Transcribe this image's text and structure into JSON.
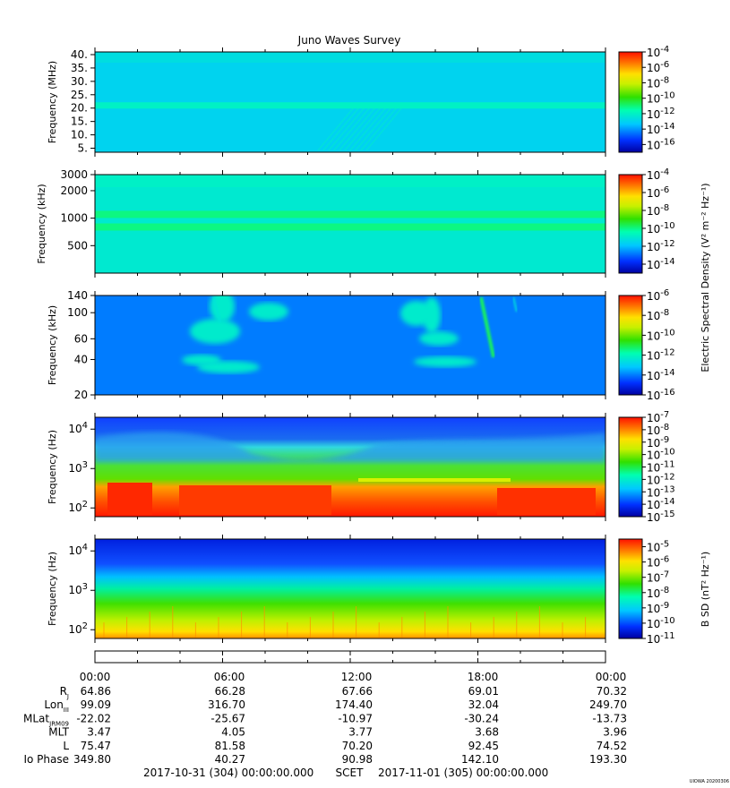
{
  "title": "Juno Waves Survey",
  "colorbar_label_electric": "Electric Spectral Density (V² m⁻² Hz⁻¹)",
  "colorbar_label_magnetic": "B SD (nT² Hz⁻¹)",
  "chart_data": [
    {
      "type": "heatmap",
      "ylabel": "Frequency (MHz)",
      "yscale": "linear",
      "ylim": [
        3.5,
        41
      ],
      "yticks": [
        "5.",
        "10.",
        "15.",
        "20.",
        "25.",
        "30.",
        "35.",
        "40."
      ],
      "ytick_values": [
        5,
        10,
        15,
        20,
        25,
        30,
        35,
        40
      ],
      "colorbar": {
        "scale": "log",
        "range_exp": [
          -17,
          -4
        ],
        "ticks": [
          -4,
          -6,
          -8,
          -10,
          -12,
          -14,
          -16
        ]
      },
      "background_level_exp": -13,
      "bands": [
        {
          "freq": 21,
          "level_exp": -12
        }
      ]
    },
    {
      "type": "heatmap",
      "ylabel": "Frequency (kHz)",
      "yscale": "log",
      "ylim": [
        250,
        3000
      ],
      "yticks": [
        "500",
        "1000",
        "2000",
        "3000"
      ],
      "ytick_values": [
        500,
        1000,
        2000,
        3000
      ],
      "colorbar": {
        "scale": "log",
        "range_exp": [
          -15,
          -4
        ],
        "ticks": [
          -4,
          -6,
          -8,
          -10,
          -12,
          -14
        ]
      },
      "background_level_exp": -11,
      "bands": [
        {
          "freq": 1100,
          "level_exp": -10
        },
        {
          "freq": 800,
          "level_exp": -10
        }
      ]
    },
    {
      "type": "heatmap",
      "ylabel": "Frequency (kHz)",
      "yscale": "log",
      "ylim": [
        20,
        140
      ],
      "yticks": [
        "20",
        "40",
        "60",
        "100",
        "140"
      ],
      "ytick_values": [
        20,
        40,
        60,
        100,
        140
      ],
      "colorbar": {
        "scale": "log",
        "range_exp": [
          -16,
          -6
        ],
        "ticks": [
          -6,
          -8,
          -10,
          -12,
          -14,
          -16
        ]
      },
      "background_level_exp": -14
    },
    {
      "type": "heatmap",
      "ylabel": "Frequency (Hz)",
      "yscale": "log",
      "ylim": [
        60,
        20000
      ],
      "yticks": [
        "10²",
        "10³",
        "10⁴"
      ],
      "ytick_values": [
        100,
        1000,
        10000
      ],
      "colorbar": {
        "scale": "log",
        "range_exp": [
          -15,
          -7
        ],
        "ticks": [
          -7,
          -8,
          -9,
          -10,
          -11,
          -12,
          -13,
          -14,
          -15
        ]
      }
    },
    {
      "type": "heatmap",
      "ylabel": "Frequency (Hz)",
      "yscale": "log",
      "ylim": [
        60,
        20000
      ],
      "yticks": [
        "10²",
        "10³",
        "10⁴"
      ],
      "ytick_values": [
        100,
        1000,
        10000
      ],
      "colorbar": {
        "scale": "log",
        "range_exp": [
          -11,
          -4.5
        ],
        "ticks": [
          -5,
          -6,
          -7,
          -8,
          -9,
          -10,
          -11
        ]
      }
    }
  ],
  "ephemeris": {
    "rows": [
      {
        "label": "R",
        "sub": "J",
        "values": [
          "64.86",
          "66.28",
          "67.66",
          "69.01",
          "70.32"
        ]
      },
      {
        "label": "Lon",
        "sub": "III",
        "values": [
          "99.09",
          "316.70",
          "174.40",
          "32.04",
          "249.70"
        ]
      },
      {
        "label": "MLat",
        "sub": "JRM09",
        "values": [
          "-22.02",
          "-25.67",
          "-10.97",
          "-30.24",
          "-13.73"
        ]
      },
      {
        "label": "MLT",
        "sub": "",
        "values": [
          "3.47",
          "4.05",
          "3.77",
          "3.68",
          "3.96"
        ]
      },
      {
        "label": "L",
        "sub": "",
        "values": [
          "75.47",
          "81.58",
          "70.20",
          "92.45",
          "74.52"
        ]
      },
      {
        "label": "Io Phase",
        "sub": "",
        "values": [
          "349.80",
          "40.27",
          "90.98",
          "142.10",
          "193.30"
        ]
      }
    ],
    "times": [
      "00:00",
      "06:00",
      "12:00",
      "18:00",
      "00:00"
    ]
  },
  "footer": {
    "start": "2017-10-31 (304) 00:00:00.000",
    "middle": "SCET",
    "end": "2017-11-01 (305) 00:00:00.000",
    "credit": "UIOWA 20200306"
  }
}
